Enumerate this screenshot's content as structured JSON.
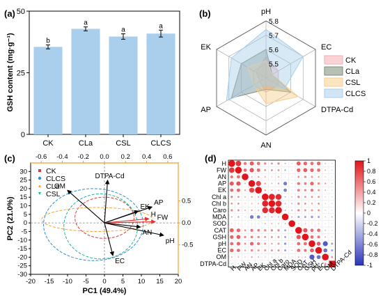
{
  "chart_data": [
    {
      "panel": "(a)",
      "type": "bar",
      "categories": [
        "CK",
        "CLa",
        "CSL",
        "CLCS"
      ],
      "values": [
        35.5,
        42.8,
        39.7,
        40.9
      ],
      "errors": [
        0.8,
        0.8,
        1.1,
        1.4
      ],
      "letters": [
        "b",
        "a",
        "a",
        "a"
      ],
      "ylabel": "GSH content (mg·g⁻¹)",
      "ylim": [
        0,
        50
      ],
      "yticks": [
        "0",
        "25",
        "50"
      ],
      "bar_color": "#a9cfec"
    },
    {
      "panel": "(b)",
      "type": "radar",
      "axes": [
        "pH",
        "EC",
        "DTPA-Cd",
        "AN",
        "AP",
        "EK"
      ],
      "rlim": [
        5.4,
        5.8
      ],
      "rticks": [
        "5.5",
        "5.6",
        "5.7",
        "5.8"
      ],
      "series": [
        {
          "name": "CK",
          "color": "#f4aeb4",
          "values": [
            5.55,
            5.5,
            5.5,
            5.5,
            5.45,
            5.48
          ]
        },
        {
          "name": "CLa",
          "color": "#7c8c78",
          "values": [
            5.6,
            5.45,
            5.6,
            5.48,
            5.68,
            5.6
          ]
        },
        {
          "name": "CSL",
          "color": "#f7cf8c",
          "values": [
            5.52,
            5.45,
            5.66,
            5.58,
            5.5,
            5.55
          ]
        },
        {
          "name": "CLCS",
          "color": "#a9cfec",
          "values": [
            5.74,
            5.7,
            5.55,
            5.44,
            5.72,
            5.68
          ]
        }
      ]
    },
    {
      "panel": "(c)",
      "type": "scatter",
      "xlabel": "PC1 (49.4%)",
      "ylabel": "PC2 (21.0%)",
      "xlim": [
        -20,
        20
      ],
      "ylim": [
        -30,
        35
      ],
      "xticks": [
        "-20",
        "-15",
        "-10",
        "-5",
        "0",
        "5",
        "10",
        "15",
        "20"
      ],
      "yticks": [
        "-30",
        "-25",
        "-20",
        "-15",
        "-10",
        "-5",
        "0",
        "5",
        "10",
        "15",
        "20",
        "25",
        "30"
      ],
      "top_ticks": [
        "-0.6",
        "-0.4",
        "-0.2",
        "0.0",
        "0.2",
        "0.4",
        "0.6"
      ],
      "right_ticks": [
        "0.5",
        "0.0",
        "-0.5"
      ],
      "groups": [
        {
          "name": "CK",
          "color": "#e03a3a",
          "cx": 0,
          "cy": 3,
          "rx": 8,
          "ry": 12
        },
        {
          "name": "CLCS",
          "color": "#2d8dd6",
          "cx": -3,
          "cy": -1,
          "rx": 13.5,
          "ry": 21
        },
        {
          "name": "CLa",
          "color": "#f2a33a",
          "cx": -2,
          "cy": 2,
          "rx": 15,
          "ry": 7
        },
        {
          "name": "CSL",
          "color": "#1bb39d",
          "cx": -1,
          "cy": -2,
          "rx": 10,
          "ry": 19
        }
      ],
      "loadings": [
        {
          "name": "DTPA-Cd",
          "x": 0.03,
          "y": 0.72,
          "color": "#000000"
        },
        {
          "name": "OM",
          "x": -0.35,
          "y": 0.55,
          "color": "#000000"
        },
        {
          "name": "AP",
          "x": 0.45,
          "y": 0.27,
          "color": "#000000"
        },
        {
          "name": "EK",
          "x": 0.32,
          "y": 0.2,
          "color": "#000000"
        },
        {
          "name": "H",
          "x": 0.42,
          "y": 0.07,
          "color": "#e53030"
        },
        {
          "name": "FW",
          "x": 0.48,
          "y": 0.02,
          "color": "#e53030"
        },
        {
          "name": "AN",
          "x": 0.34,
          "y": -0.07,
          "color": "#000000"
        },
        {
          "name": "pH",
          "x": 0.56,
          "y": -0.21,
          "color": "#000000"
        },
        {
          "name": "EC",
          "x": 0.08,
          "y": -0.55,
          "color": "#000000"
        }
      ]
    },
    {
      "panel": "(d)",
      "type": "heatmap",
      "labels": [
        "H",
        "FW",
        "AN",
        "AP",
        "EK",
        "Chl a",
        "Chl b",
        "Caro",
        "MDA",
        "SOD",
        "CAT",
        "GSH",
        "pH",
        "EC",
        "OM",
        "DTPA-Cd"
      ],
      "matrix": [
        [
          1,
          0.82,
          0.45,
          0.62,
          0.5,
          0.35,
          0.3,
          0.35,
          -0.2,
          0.1,
          0.6,
          0.55,
          0.5,
          0.55,
          0.2,
          -0.1
        ],
        [
          0.82,
          1,
          0.5,
          0.65,
          0.52,
          0.3,
          0.3,
          0.3,
          -0.25,
          0.1,
          0.55,
          0.6,
          0.55,
          0.5,
          0.2,
          -0.1
        ],
        [
          0.45,
          0.5,
          1,
          0.2,
          0.25,
          0.2,
          0.15,
          0.2,
          -0.1,
          0.05,
          0.3,
          0.35,
          0.3,
          0.25,
          0.15,
          -0.05
        ],
        [
          0.62,
          0.65,
          0.2,
          1,
          0.75,
          0.25,
          0.2,
          0.25,
          -0.55,
          0.1,
          0.45,
          0.4,
          0.55,
          0.35,
          0.25,
          -0.15
        ],
        [
          0.5,
          0.52,
          0.25,
          0.75,
          1,
          0.25,
          0.2,
          0.2,
          -0.5,
          0.1,
          0.4,
          0.35,
          0.45,
          0.3,
          0.2,
          -0.1
        ],
        [
          0.35,
          0.3,
          0.2,
          0.25,
          0.25,
          1,
          0.92,
          0.88,
          -0.2,
          0.2,
          0.35,
          0.3,
          0.3,
          0.3,
          0.15,
          -0.1
        ],
        [
          0.3,
          0.3,
          0.15,
          0.2,
          0.2,
          0.92,
          1,
          0.9,
          -0.2,
          0.2,
          0.35,
          0.3,
          0.25,
          0.3,
          0.15,
          -0.1
        ],
        [
          0.35,
          0.3,
          0.2,
          0.25,
          0.2,
          0.88,
          0.9,
          1,
          -0.2,
          0.2,
          0.35,
          0.3,
          0.3,
          0.3,
          0.15,
          -0.1
        ],
        [
          -0.2,
          -0.25,
          -0.1,
          -0.55,
          -0.5,
          -0.2,
          -0.2,
          -0.2,
          1,
          0.2,
          -0.3,
          -0.3,
          -0.35,
          -0.3,
          -0.15,
          0.2
        ],
        [
          0.1,
          0.1,
          0.05,
          0.1,
          0.1,
          0.2,
          0.2,
          0.2,
          0.2,
          1,
          0.15,
          0.15,
          0.1,
          0.15,
          0.05,
          0.05
        ],
        [
          0.6,
          0.55,
          0.3,
          0.45,
          0.4,
          0.35,
          0.35,
          0.35,
          -0.3,
          0.15,
          1,
          0.65,
          0.5,
          0.5,
          0.2,
          -0.1
        ],
        [
          0.55,
          0.6,
          0.35,
          0.4,
          0.35,
          0.3,
          0.3,
          0.3,
          -0.3,
          0.15,
          0.65,
          1,
          0.5,
          0.45,
          0.2,
          -0.1
        ],
        [
          0.5,
          0.55,
          0.3,
          0.55,
          0.45,
          0.3,
          0.25,
          0.3,
          -0.35,
          0.1,
          0.5,
          0.5,
          1,
          0.6,
          -0.75,
          -0.3
        ],
        [
          0.55,
          0.5,
          0.25,
          0.35,
          0.3,
          0.3,
          0.3,
          0.3,
          -0.3,
          0.15,
          0.5,
          0.45,
          0.6,
          1,
          -0.6,
          -0.3
        ],
        [
          0.2,
          0.2,
          0.15,
          0.25,
          0.2,
          0.15,
          0.15,
          0.15,
          -0.15,
          0.05,
          0.2,
          0.2,
          -0.75,
          -0.6,
          1,
          0.3
        ],
        [
          -0.1,
          -0.1,
          -0.05,
          -0.15,
          -0.1,
          -0.1,
          -0.1,
          -0.1,
          0.2,
          0.05,
          -0.1,
          -0.1,
          -0.3,
          -0.3,
          0.3,
          1
        ]
      ],
      "colorbar_ticks": [
        "1",
        "0.8",
        "0.6",
        "0.4",
        "0.2",
        "0",
        "-0.2",
        "-0.4",
        "-0.6",
        "-0.8",
        "-1"
      ],
      "positive_color": "#e0151b",
      "negative_color": "#2a35b8"
    }
  ]
}
